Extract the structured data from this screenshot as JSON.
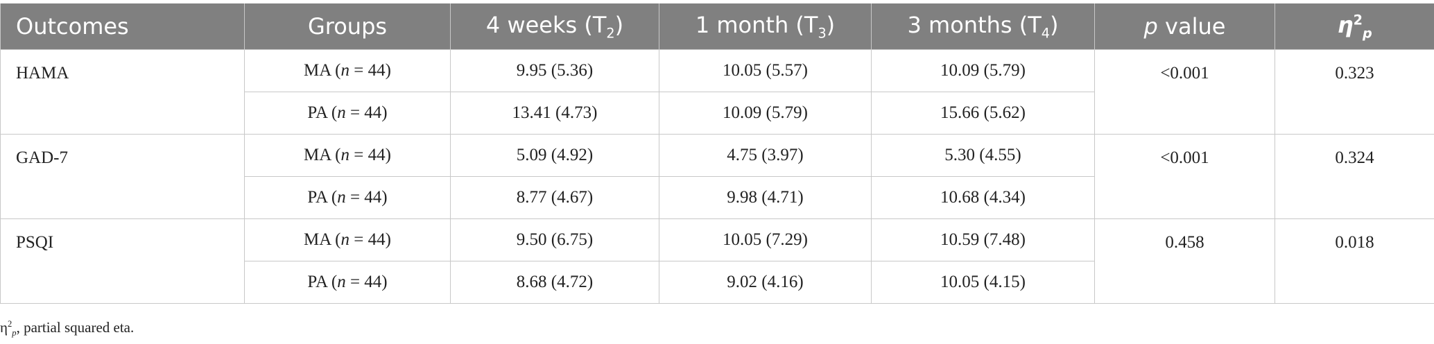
{
  "table": {
    "header": [
      [
        "Outcomes"
      ],
      [
        "Groups"
      ],
      [
        "4 weeks (T",
        "2",
        ")"
      ],
      [
        "1 month (T",
        "3",
        ")"
      ],
      [
        "3 months (T",
        "4",
        ")"
      ],
      [
        "p",
        " value"
      ],
      [
        "η",
        "2",
        "p"
      ]
    ],
    "rows": [
      {
        "outcome": "HAMA",
        "p_value": "<0.001",
        "eta": "0.323",
        "groups": [
          {
            "label": [
              "MA (",
              "n",
              " = 44)"
            ],
            "values": [
              "9.95 (5.36)",
              "10.05 (5.57)",
              "10.09 (5.79)"
            ]
          },
          {
            "label": [
              "PA (",
              "n",
              " = 44)"
            ],
            "values": [
              "13.41 (4.73)",
              "10.09 (5.79)",
              "15.66 (5.62)"
            ]
          }
        ]
      },
      {
        "outcome": "GAD-7",
        "p_value": "<0.001",
        "eta": "0.324",
        "groups": [
          {
            "label": [
              "MA (",
              "n",
              " = 44)"
            ],
            "values": [
              "5.09 (4.92)",
              "4.75 (3.97)",
              "5.30 (4.55)"
            ]
          },
          {
            "label": [
              "PA (",
              "n",
              " = 44)"
            ],
            "values": [
              "8.77 (4.67)",
              "9.98 (4.71)",
              "10.68 (4.34)"
            ]
          }
        ]
      },
      {
        "outcome": "PSQI",
        "p_value": "0.458",
        "eta": "0.018",
        "groups": [
          {
            "label": [
              "MA (",
              "n",
              " = 44)"
            ],
            "values": [
              "9.50 (6.75)",
              "10.05 (7.29)",
              "10.59 (7.48)"
            ]
          },
          {
            "label": [
              "PA (",
              "n",
              " = 44)"
            ],
            "values": [
              "8.68 (4.72)",
              "9.02 (4.16)",
              "10.05 (4.15)"
            ]
          }
        ]
      }
    ]
  },
  "footnote": [
    "η",
    "2",
    "p",
    ", partial squared eta."
  ]
}
